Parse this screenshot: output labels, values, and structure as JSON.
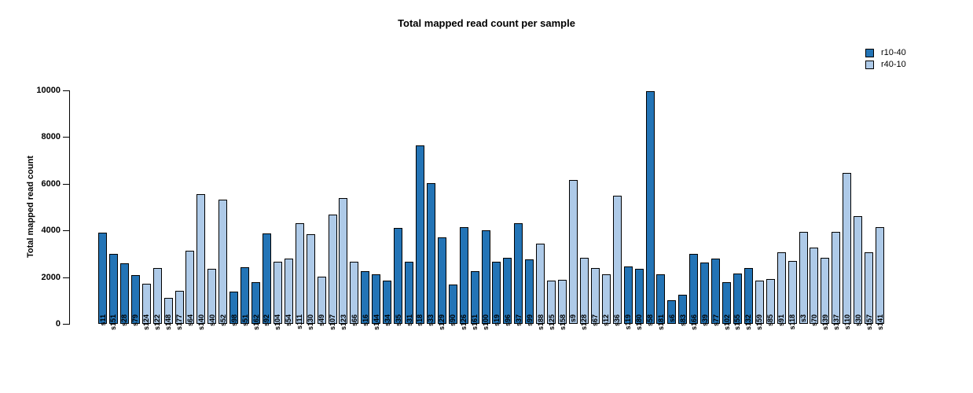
{
  "chart_data": {
    "type": "bar",
    "title": "Total mapped read count per sample",
    "xlabel": "",
    "ylabel": "Total mapped read count",
    "ylim": [
      0,
      10000
    ],
    "yticks": [
      0,
      2000,
      4000,
      6000,
      8000,
      10000
    ],
    "grid": false,
    "legend": {
      "position": "top-right",
      "entries": [
        {
          "name": "r10-40",
          "color": "#2374b6"
        },
        {
          "name": "r40-10",
          "color": "#aecae8"
        }
      ]
    },
    "bars": [
      {
        "label": "s11",
        "value": 3900,
        "group": "r10-40"
      },
      {
        "label": "s151",
        "value": 3000,
        "group": "r10-40"
      },
      {
        "label": "s28",
        "value": 2580,
        "group": "r10-40"
      },
      {
        "label": "s79",
        "value": 2100,
        "group": "r10-40"
      },
      {
        "label": "s124",
        "value": 1730,
        "group": "r40-10"
      },
      {
        "label": "s122",
        "value": 2400,
        "group": "r40-10"
      },
      {
        "label": "s148",
        "value": 1100,
        "group": "r40-10"
      },
      {
        "label": "s177",
        "value": 1430,
        "group": "r40-10"
      },
      {
        "label": "s64",
        "value": 3120,
        "group": "r40-10"
      },
      {
        "label": "s140",
        "value": 5560,
        "group": "r40-10"
      },
      {
        "label": "s40",
        "value": 2350,
        "group": "r40-10"
      },
      {
        "label": "s52",
        "value": 5320,
        "group": "r40-10"
      },
      {
        "label": "s98",
        "value": 1370,
        "group": "r10-40"
      },
      {
        "label": "s51",
        "value": 2430,
        "group": "r10-40"
      },
      {
        "label": "s162",
        "value": 1780,
        "group": "r10-40"
      },
      {
        "label": "s92",
        "value": 3870,
        "group": "r10-40"
      },
      {
        "label": "s104",
        "value": 2650,
        "group": "r40-10"
      },
      {
        "label": "s54",
        "value": 2780,
        "group": "r40-10"
      },
      {
        "label": "s111",
        "value": 4300,
        "group": "r40-10"
      },
      {
        "label": "s130",
        "value": 3830,
        "group": "r40-10"
      },
      {
        "label": "s49",
        "value": 2030,
        "group": "r40-10"
      },
      {
        "label": "s107",
        "value": 4670,
        "group": "r40-10"
      },
      {
        "label": "s123",
        "value": 5390,
        "group": "r40-10"
      },
      {
        "label": "s66",
        "value": 2650,
        "group": "r40-10"
      },
      {
        "label": "s16",
        "value": 2270,
        "group": "r10-40"
      },
      {
        "label": "s144",
        "value": 2120,
        "group": "r10-40"
      },
      {
        "label": "s34",
        "value": 1850,
        "group": "r10-40"
      },
      {
        "label": "s35",
        "value": 4100,
        "group": "r10-40"
      },
      {
        "label": "s31",
        "value": 2670,
        "group": "r10-40"
      },
      {
        "label": "s18",
        "value": 7640,
        "group": "r10-40"
      },
      {
        "label": "s33",
        "value": 6030,
        "group": "r10-40"
      },
      {
        "label": "s129",
        "value": 3720,
        "group": "r10-40"
      },
      {
        "label": "s90",
        "value": 1700,
        "group": "r10-40"
      },
      {
        "label": "s126",
        "value": 4130,
        "group": "r10-40"
      },
      {
        "label": "s161",
        "value": 2250,
        "group": "r10-40"
      },
      {
        "label": "s100",
        "value": 4000,
        "group": "r10-40"
      },
      {
        "label": "s19",
        "value": 2650,
        "group": "r10-40"
      },
      {
        "label": "s96",
        "value": 2840,
        "group": "r10-40"
      },
      {
        "label": "s37",
        "value": 4300,
        "group": "r10-40"
      },
      {
        "label": "s99",
        "value": 2750,
        "group": "r10-40"
      },
      {
        "label": "s188",
        "value": 3450,
        "group": "r40-10"
      },
      {
        "label": "s125",
        "value": 1850,
        "group": "r40-10"
      },
      {
        "label": "s158",
        "value": 1900,
        "group": "r40-10"
      },
      {
        "label": "s9",
        "value": 6150,
        "group": "r40-10"
      },
      {
        "label": "s128",
        "value": 2840,
        "group": "r40-10"
      },
      {
        "label": "s67",
        "value": 2380,
        "group": "r40-10"
      },
      {
        "label": "s12",
        "value": 2120,
        "group": "r40-10"
      },
      {
        "label": "s36",
        "value": 5480,
        "group": "r40-10"
      },
      {
        "label": "s119",
        "value": 2450,
        "group": "r10-40"
      },
      {
        "label": "s180",
        "value": 2350,
        "group": "r10-40"
      },
      {
        "label": "s58",
        "value": 9950,
        "group": "r10-40"
      },
      {
        "label": "s181",
        "value": 2130,
        "group": "r10-40"
      },
      {
        "label": "s6",
        "value": 1020,
        "group": "r10-40"
      },
      {
        "label": "s83",
        "value": 1250,
        "group": "r10-40"
      },
      {
        "label": "s166",
        "value": 3000,
        "group": "r10-40"
      },
      {
        "label": "s39",
        "value": 2620,
        "group": "r10-40"
      },
      {
        "label": "s77",
        "value": 2780,
        "group": "r10-40"
      },
      {
        "label": "s102",
        "value": 1780,
        "group": "r10-40"
      },
      {
        "label": "s155",
        "value": 2170,
        "group": "r10-40"
      },
      {
        "label": "s132",
        "value": 2400,
        "group": "r10-40"
      },
      {
        "label": "s159",
        "value": 1850,
        "group": "r40-10"
      },
      {
        "label": "s85",
        "value": 1930,
        "group": "r40-10"
      },
      {
        "label": "s91",
        "value": 3050,
        "group": "r40-10"
      },
      {
        "label": "s118",
        "value": 2700,
        "group": "r40-10"
      },
      {
        "label": "s3",
        "value": 3950,
        "group": "r40-10"
      },
      {
        "label": "s70",
        "value": 3270,
        "group": "r40-10"
      },
      {
        "label": "s139",
        "value": 2820,
        "group": "r40-10"
      },
      {
        "label": "s137",
        "value": 3930,
        "group": "r40-10"
      },
      {
        "label": "s110",
        "value": 6480,
        "group": "r40-10"
      },
      {
        "label": "s30",
        "value": 4600,
        "group": "r40-10"
      },
      {
        "label": "s157",
        "value": 3050,
        "group": "r40-10"
      },
      {
        "label": "s141",
        "value": 4150,
        "group": "r40-10"
      }
    ]
  }
}
